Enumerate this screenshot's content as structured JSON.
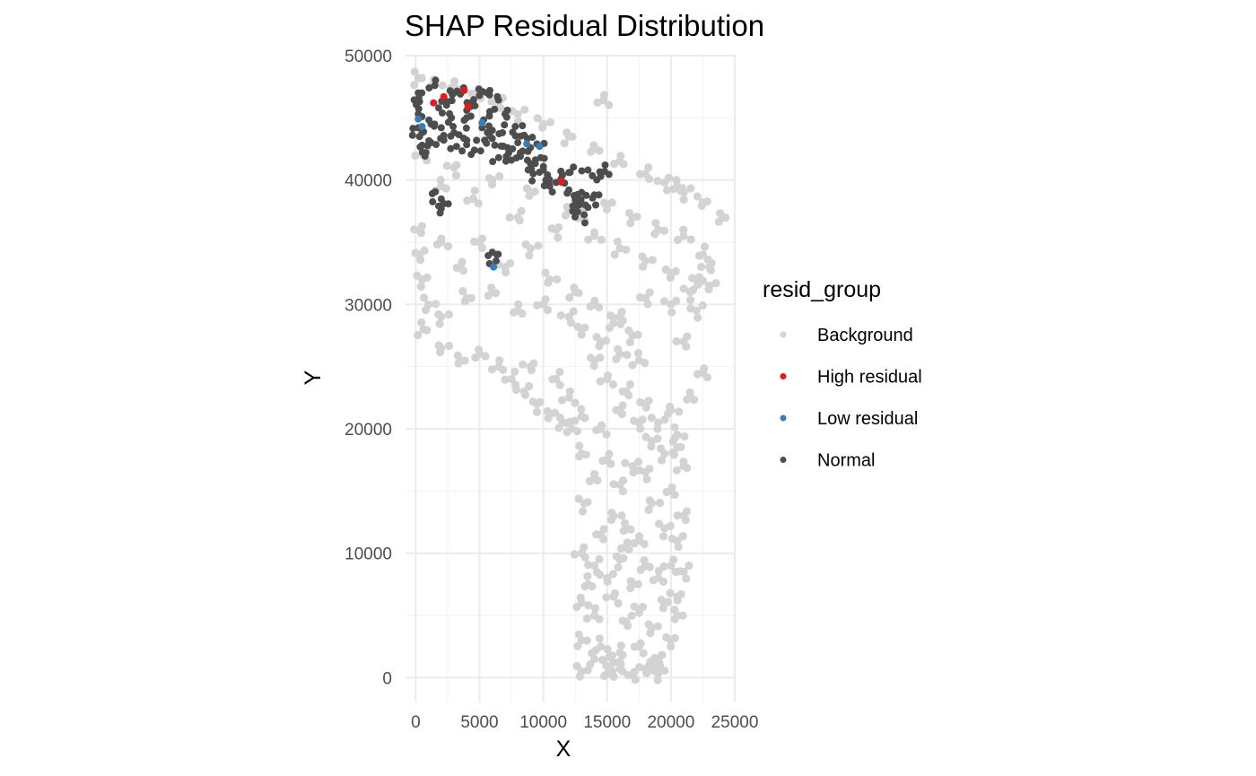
{
  "chart_data": {
    "type": "scatter",
    "title": "SHAP Residual Distribution",
    "xlabel": "X",
    "ylabel": "Y",
    "xlim": [
      -800,
      25000
    ],
    "ylim": [
      -2000,
      50000
    ],
    "x_ticks": [
      0,
      5000,
      10000,
      15000,
      20000,
      25000
    ],
    "y_ticks": [
      0,
      10000,
      20000,
      30000,
      40000,
      50000
    ],
    "x_tick_labels": [
      "0",
      "5000",
      "10000",
      "15000",
      "20000",
      "25000"
    ],
    "y_tick_labels": [
      "0",
      "10000",
      "20000",
      "30000",
      "40000",
      "50000"
    ],
    "grid": true,
    "legend": {
      "title": "resid_group",
      "position": "right",
      "entries": [
        {
          "label": "Background",
          "color": "#d3d3d3"
        },
        {
          "label": "High residual",
          "color": "#e41a1c"
        },
        {
          "label": "Low residual",
          "color": "#377eb8"
        },
        {
          "label": "Normal",
          "color": "#4d4d4d"
        }
      ]
    },
    "series": [
      {
        "name": "Background",
        "color": "#d3d3d3",
        "points": [
          [
            200,
            48200
          ],
          [
            1500,
            47800
          ],
          [
            3000,
            47500
          ],
          [
            4800,
            47000
          ],
          [
            6500,
            46200
          ],
          [
            8000,
            45300
          ],
          [
            10000,
            44500
          ],
          [
            12000,
            43500
          ],
          [
            14000,
            42500
          ],
          [
            16000,
            41500
          ],
          [
            18000,
            40500
          ],
          [
            19500,
            39800
          ],
          [
            21000,
            39000
          ],
          [
            22500,
            38200
          ],
          [
            24000,
            37000
          ],
          [
            20500,
            39500
          ],
          [
            14700,
            46400
          ],
          [
            600,
            42000
          ],
          [
            3000,
            41000
          ],
          [
            6000,
            40000
          ],
          [
            9000,
            39000
          ],
          [
            12000,
            37500
          ],
          [
            2000,
            39500
          ],
          [
            4500,
            38500
          ],
          [
            8000,
            37000
          ],
          [
            11000,
            36000
          ],
          [
            15000,
            38000
          ],
          [
            17000,
            37000
          ],
          [
            19000,
            36000
          ],
          [
            21000,
            35500
          ],
          [
            22500,
            34000
          ],
          [
            23000,
            33000
          ],
          [
            22000,
            32000
          ],
          [
            20000,
            32500
          ],
          [
            18000,
            33500
          ],
          [
            16000,
            34500
          ],
          [
            14000,
            35500
          ],
          [
            13000,
            37000
          ],
          [
            300,
            36000
          ],
          [
            300,
            34000
          ],
          [
            500,
            32000
          ],
          [
            1000,
            30000
          ],
          [
            600,
            28000
          ],
          [
            2000,
            35000
          ],
          [
            3500,
            33000
          ],
          [
            5000,
            35000
          ],
          [
            7000,
            33000
          ],
          [
            9000,
            34500
          ],
          [
            10500,
            32000
          ],
          [
            12500,
            31000
          ],
          [
            14000,
            30000
          ],
          [
            16000,
            29000
          ],
          [
            18000,
            30500
          ],
          [
            20000,
            30000
          ],
          [
            2000,
            29000
          ],
          [
            4000,
            30500
          ],
          [
            6000,
            31000
          ],
          [
            8000,
            29500
          ],
          [
            10000,
            30000
          ],
          [
            12000,
            29000
          ],
          [
            21500,
            31000
          ],
          [
            2000,
            26500
          ],
          [
            3500,
            25500
          ],
          [
            5000,
            26000
          ],
          [
            6500,
            25000
          ],
          [
            7500,
            24000
          ],
          [
            8500,
            23000
          ],
          [
            9500,
            22000
          ],
          [
            10500,
            21200
          ],
          [
            11500,
            20500
          ],
          [
            12200,
            20000
          ],
          [
            12000,
            22500
          ],
          [
            11000,
            24000
          ],
          [
            9000,
            25000
          ],
          [
            13000,
            28000
          ],
          [
            14500,
            27000
          ],
          [
            16000,
            26000
          ],
          [
            17500,
            25500
          ],
          [
            15000,
            24000
          ],
          [
            16500,
            23000
          ],
          [
            18000,
            22000
          ],
          [
            14000,
            25500
          ],
          [
            17000,
            27500
          ],
          [
            15500,
            28500
          ],
          [
            13000,
            21000
          ],
          [
            14500,
            20000
          ],
          [
            16000,
            21500
          ],
          [
            17500,
            20500
          ],
          [
            18500,
            19000
          ],
          [
            19500,
            18000
          ],
          [
            20500,
            19500
          ],
          [
            21000,
            17000
          ],
          [
            20000,
            15000
          ],
          [
            21000,
            13000
          ],
          [
            20500,
            11000
          ],
          [
            19500,
            12000
          ],
          [
            18500,
            14000
          ],
          [
            13000,
            18000
          ],
          [
            14000,
            16000
          ],
          [
            15000,
            17500
          ],
          [
            16000,
            15500
          ],
          [
            17000,
            17000
          ],
          [
            13200,
            14000
          ],
          [
            15500,
            13000
          ],
          [
            16500,
            12000
          ],
          [
            17500,
            11000
          ],
          [
            13000,
            10000
          ],
          [
            14000,
            9000
          ],
          [
            15000,
            8000
          ],
          [
            16000,
            9500
          ],
          [
            17000,
            7500
          ],
          [
            18000,
            9000
          ],
          [
            19000,
            8000
          ],
          [
            20000,
            9000
          ],
          [
            21000,
            8500
          ],
          [
            20500,
            6500
          ],
          [
            19500,
            6000
          ],
          [
            20500,
            5000
          ],
          [
            13000,
            6000
          ],
          [
            14000,
            5000
          ],
          [
            15500,
            6500
          ],
          [
            16500,
            4500
          ],
          [
            17500,
            5500
          ],
          [
            18500,
            4000
          ],
          [
            13000,
            3000
          ],
          [
            14500,
            2500
          ],
          [
            16000,
            2000
          ],
          [
            17500,
            2500
          ],
          [
            19000,
            1500
          ],
          [
            20000,
            3000
          ],
          [
            13000,
            500
          ],
          [
            14000,
            1500
          ],
          [
            15000,
            300
          ],
          [
            16000,
            700
          ],
          [
            17000,
            200
          ],
          [
            18000,
            700
          ],
          [
            19000,
            300
          ],
          [
            15500,
            1200
          ],
          [
            18500,
            1000
          ],
          [
            13500,
            7500
          ],
          [
            16500,
            10500
          ],
          [
            14500,
            11500
          ],
          [
            18000,
            16500
          ],
          [
            19000,
            20500
          ],
          [
            20500,
            18500
          ],
          [
            20000,
            21500
          ],
          [
            21500,
            22500
          ],
          [
            22500,
            24500
          ],
          [
            21000,
            27000
          ],
          [
            22000,
            29500
          ],
          [
            23000,
            31500
          ]
        ]
      },
      {
        "name": "Normal",
        "color": "#4d4d4d",
        "points": [
          [
            200,
            47000
          ],
          [
            300,
            46300
          ],
          [
            200,
            45300
          ],
          [
            200,
            44200
          ],
          [
            300,
            43500
          ],
          [
            500,
            42800
          ],
          [
            800,
            42200
          ],
          [
            1200,
            44500
          ],
          [
            1200,
            43000
          ],
          [
            1500,
            47600
          ],
          [
            1800,
            45800
          ],
          [
            2000,
            44200
          ],
          [
            2200,
            43200
          ],
          [
            2500,
            46300
          ],
          [
            2800,
            45000
          ],
          [
            3000,
            43800
          ],
          [
            3200,
            42700
          ],
          [
            3500,
            46900
          ],
          [
            3800,
            44800
          ],
          [
            4000,
            43200
          ],
          [
            4300,
            45900
          ],
          [
            4600,
            42400
          ],
          [
            5000,
            46800
          ],
          [
            5200,
            44200
          ],
          [
            5400,
            43200
          ],
          [
            5600,
            47000
          ],
          [
            5800,
            45500
          ],
          [
            6000,
            44000
          ],
          [
            6200,
            42800
          ],
          [
            6500,
            41800
          ],
          [
            6800,
            43800
          ],
          [
            7000,
            45300
          ],
          [
            7200,
            42600
          ],
          [
            7500,
            41600
          ],
          [
            7800,
            44300
          ],
          [
            8000,
            43000
          ],
          [
            8200,
            41900
          ],
          [
            8500,
            43600
          ],
          [
            8800,
            42300
          ],
          [
            9000,
            41300
          ],
          [
            9200,
            40500
          ],
          [
            9500,
            42900
          ],
          [
            9800,
            41800
          ],
          [
            10000,
            40800
          ],
          [
            10200,
            40000
          ],
          [
            10500,
            39500
          ],
          [
            11000,
            39800
          ],
          [
            11500,
            40400
          ],
          [
            12000,
            39200
          ],
          [
            12500,
            38400
          ],
          [
            13000,
            39000
          ],
          [
            12800,
            38000
          ],
          [
            12300,
            37500
          ],
          [
            13200,
            37200
          ],
          [
            13500,
            37800
          ],
          [
            14000,
            38800
          ],
          [
            14500,
            40300
          ],
          [
            14800,
            40700
          ],
          [
            13500,
            40800
          ],
          [
            12000,
            40600
          ],
          [
            1300,
            38900
          ],
          [
            2000,
            37700
          ],
          [
            2200,
            38100
          ],
          [
            6000,
            34200
          ],
          [
            6300,
            33500
          ],
          [
            4000,
            45600
          ],
          [
            6400,
            46700
          ],
          [
            3000,
            47000
          ]
        ]
      },
      {
        "name": "High residual",
        "color": "#e41a1c",
        "points": [
          [
            1400,
            46200
          ],
          [
            2200,
            46700
          ],
          [
            3800,
            47200
          ],
          [
            4100,
            45900
          ],
          [
            11400,
            39900
          ]
        ]
      },
      {
        "name": "Low residual",
        "color": "#377eb8",
        "points": [
          [
            200,
            44900
          ],
          [
            500,
            44300
          ],
          [
            5200,
            44600
          ],
          [
            8700,
            42900
          ],
          [
            9700,
            42700
          ],
          [
            6100,
            33000
          ]
        ]
      }
    ]
  }
}
